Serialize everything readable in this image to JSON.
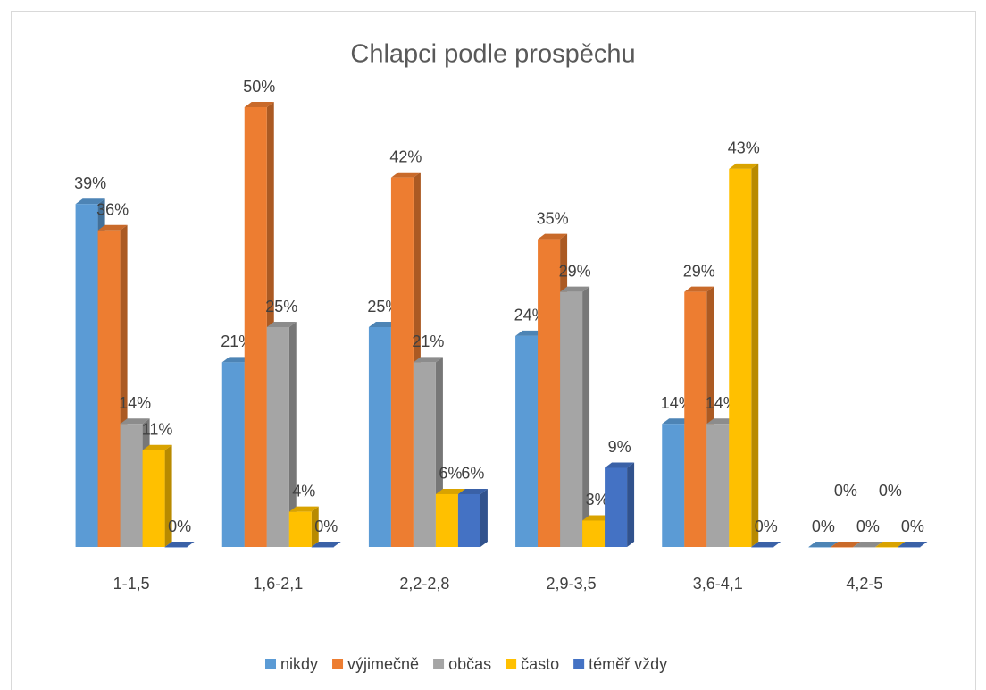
{
  "chart_data": {
    "type": "bar3d",
    "title": "Chlapci podle prospěchu",
    "categories": [
      "1-1,5",
      "1,6-2,1",
      "2,2-2,8",
      "2,9-3,5",
      "3,6-4,1",
      "4,2-5"
    ],
    "series": [
      {
        "name": "nikdy",
        "color": "#5b9bd5",
        "values": [
          39,
          21,
          25,
          24,
          14,
          0
        ],
        "value_labels": [
          "39%",
          "21%",
          "25%",
          "24%",
          "14%",
          "0%"
        ]
      },
      {
        "name": "výjimečně",
        "color": "#ed7d31",
        "values": [
          36,
          50,
          42,
          35,
          29,
          0
        ],
        "value_labels": [
          "36%",
          "50%",
          "42%",
          "35%",
          "29%",
          "0%"
        ]
      },
      {
        "name": "občas",
        "color": "#a5a5a5",
        "values": [
          14,
          25,
          21,
          29,
          14,
          0
        ],
        "value_labels": [
          "14%",
          "25%",
          "21%",
          "29%",
          "14%",
          "0%"
        ]
      },
      {
        "name": "často",
        "color": "#ffc000",
        "values": [
          11,
          4,
          6,
          3,
          43,
          0
        ],
        "value_labels": [
          "11%",
          "4%",
          "6%",
          "3%",
          "43%",
          "0%"
        ]
      },
      {
        "name": "téměř vždy",
        "color": "#4472c4",
        "values": [
          0,
          0,
          6,
          9,
          0,
          0
        ],
        "value_labels": [
          "0%",
          "0%",
          "6%",
          "9%",
          "0%",
          "0%"
        ]
      }
    ],
    "legend": "bottom"
  }
}
